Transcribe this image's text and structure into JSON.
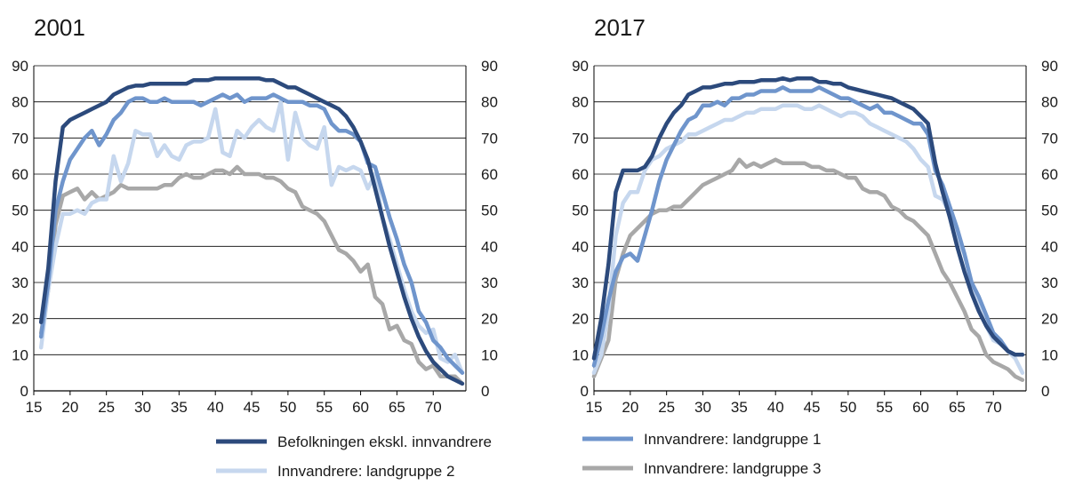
{
  "colors": {
    "Befolkningen ekskl. innvandrere": "#2c4a7c",
    "Innvandrere: landgruppe 1": "#6f95cc",
    "Innvandrere: landgruppe 2": "#c6d7ee",
    "Innvandrere: landgruppe 3": "#a8a8a8",
    "axis": "#000000",
    "grid": "#000000"
  },
  "legend": [
    "Befolkningen ekskl. innvandrere",
    "Innvandrere: landgruppe 1",
    "Innvandrere: landgruppe 2",
    "Innvandrere: landgruppe 3"
  ],
  "chart_data": [
    {
      "type": "line",
      "title": "2001",
      "xlabel": "",
      "ylabel": "",
      "xlim": [
        15,
        74.5
      ],
      "ylim": [
        0,
        90
      ],
      "xticks": [
        15,
        20,
        25,
        30,
        35,
        40,
        45,
        50,
        55,
        60,
        65,
        70
      ],
      "yticks": [
        0,
        10,
        20,
        30,
        40,
        50,
        60,
        70,
        80,
        90
      ],
      "grid": "horizontal",
      "secondary_y_axis": "mirrored",
      "x": [
        16,
        17,
        18,
        19,
        20,
        21,
        22,
        23,
        24,
        25,
        26,
        27,
        28,
        29,
        30,
        31,
        32,
        33,
        34,
        35,
        36,
        37,
        38,
        39,
        40,
        41,
        42,
        43,
        44,
        45,
        46,
        47,
        48,
        49,
        50,
        51,
        52,
        53,
        54,
        55,
        56,
        57,
        58,
        59,
        60,
        61,
        62,
        63,
        64,
        65,
        66,
        67,
        68,
        69,
        70,
        71,
        72,
        73,
        74
      ],
      "series": [
        {
          "name": "Befolkningen ekskl. innvandrere",
          "values": [
            19,
            34,
            58,
            73,
            75,
            76,
            77,
            78,
            79,
            80,
            82,
            83,
            84,
            84.5,
            84.5,
            85,
            85,
            85,
            85,
            85,
            85,
            86,
            86,
            86,
            86.5,
            86.5,
            86.5,
            86.5,
            86.5,
            86.5,
            86.5,
            86,
            86,
            85,
            84,
            84,
            83,
            82,
            81,
            80,
            79,
            78,
            76,
            73,
            69,
            64,
            56,
            48,
            40,
            33,
            26,
            20,
            15,
            11,
            8,
            6,
            4,
            3,
            2
          ]
        },
        {
          "name": "Innvandrere: landgruppe 1",
          "values": [
            15,
            30,
            50,
            58,
            64,
            67,
            70,
            72,
            68,
            71,
            75,
            77,
            80,
            81,
            81,
            80,
            80,
            81,
            80,
            80,
            80,
            80,
            79,
            80,
            81,
            82,
            81,
            82,
            80,
            81,
            81,
            81,
            82,
            81,
            80,
            80,
            80,
            79,
            79,
            78,
            74,
            72,
            72,
            71,
            69,
            63,
            62,
            55,
            48,
            42,
            35,
            30,
            22,
            19,
            14,
            12,
            9,
            7,
            5
          ]
        },
        {
          "name": "Innvandrere: landgruppe 2",
          "values": [
            12,
            28,
            40,
            49,
            49,
            50,
            49,
            52,
            53,
            53,
            65,
            58,
            63,
            72,
            71,
            71,
            65,
            68,
            65,
            64,
            68,
            69,
            69,
            70,
            78,
            66,
            65,
            72,
            70,
            73,
            75,
            73,
            72,
            80,
            64,
            77,
            70,
            68,
            67,
            73,
            57,
            62,
            61,
            62,
            61,
            56,
            60,
            48,
            42,
            35,
            28,
            22,
            18,
            16,
            17,
            9,
            8,
            10,
            5
          ]
        },
        {
          "name": "Innvandrere: landgruppe 3",
          "values": [
            16,
            28,
            46,
            54,
            55,
            56,
            53,
            55,
            53,
            54,
            55,
            57,
            56,
            56,
            56,
            56,
            56,
            57,
            57,
            59,
            60,
            59,
            59,
            60,
            61,
            61,
            60,
            62,
            60,
            60,
            60,
            59,
            59,
            58,
            56,
            55,
            51,
            50,
            49,
            47,
            43,
            39,
            38,
            36,
            33,
            35,
            26,
            24,
            17,
            18,
            14,
            13,
            8,
            6,
            7,
            4,
            4,
            4,
            2
          ]
        }
      ]
    },
    {
      "type": "line",
      "title": "2017",
      "xlabel": "",
      "ylabel": "",
      "xlim": [
        15,
        74.5
      ],
      "ylim": [
        0,
        90
      ],
      "xticks": [
        15,
        20,
        25,
        30,
        35,
        40,
        45,
        50,
        55,
        60,
        65,
        70
      ],
      "yticks": [
        0,
        10,
        20,
        30,
        40,
        50,
        60,
        70,
        80,
        90
      ],
      "grid": "horizontal",
      "secondary_y_axis": "mirrored",
      "x": [
        15,
        16,
        17,
        18,
        19,
        20,
        21,
        22,
        23,
        24,
        25,
        26,
        27,
        28,
        29,
        30,
        31,
        32,
        33,
        34,
        35,
        36,
        37,
        38,
        39,
        40,
        41,
        42,
        43,
        44,
        45,
        46,
        47,
        48,
        49,
        50,
        51,
        52,
        53,
        54,
        55,
        56,
        57,
        58,
        59,
        60,
        61,
        62,
        63,
        64,
        65,
        66,
        67,
        68,
        69,
        70,
        71,
        72,
        73,
        74
      ],
      "series": [
        {
          "name": "Befolkningen ekskl. innvandrere",
          "values": [
            9,
            20,
            35,
            55,
            61,
            61,
            61,
            62,
            65,
            70,
            74,
            77,
            79,
            82,
            83,
            84,
            84,
            84.5,
            85,
            85,
            85.5,
            85.5,
            85.5,
            86,
            86,
            86,
            86.5,
            86,
            86.5,
            86.5,
            86.5,
            85.5,
            85.5,
            85,
            85,
            84,
            83.5,
            83,
            82.5,
            82,
            81.5,
            81,
            80,
            79,
            78,
            76,
            74,
            63,
            55,
            48,
            40,
            33,
            27,
            22,
            18,
            15,
            13,
            11,
            10,
            10
          ]
        },
        {
          "name": "Innvandrere: landgruppe 1",
          "values": [
            7,
            15,
            25,
            33,
            37,
            38,
            36,
            43,
            50,
            58,
            64,
            68,
            72,
            75,
            76,
            79,
            79,
            80,
            79,
            81,
            81,
            82,
            82,
            83,
            83,
            83,
            84,
            83,
            83,
            83,
            83,
            84,
            83,
            82,
            81,
            81,
            80,
            79,
            78,
            79,
            77,
            77,
            76,
            75,
            74,
            74,
            71,
            61,
            57,
            51,
            45,
            38,
            30,
            26,
            21,
            16,
            14,
            11,
            10,
            10
          ]
        },
        {
          "name": "Innvandrere: landgruppe 2",
          "values": [
            5,
            10,
            22,
            43,
            52,
            55,
            55,
            61,
            64,
            65,
            67,
            68,
            69,
            71,
            71,
            72,
            73,
            74,
            75,
            75,
            76,
            77,
            77,
            78,
            78,
            78,
            79,
            79,
            79,
            78,
            78,
            79,
            78,
            77,
            76,
            77,
            77,
            76,
            74,
            73,
            72,
            71,
            70,
            69,
            67,
            64,
            62,
            54,
            53,
            49,
            43,
            38,
            30,
            23,
            18,
            14,
            13,
            11,
            9,
            5
          ]
        },
        {
          "name": "Innvandrere: landgruppe 3",
          "values": [
            4,
            9,
            14,
            31,
            38,
            43,
            45,
            47,
            49,
            50,
            50,
            51,
            51,
            53,
            55,
            57,
            58,
            59,
            60,
            61,
            64,
            62,
            63,
            62,
            63,
            64,
            63,
            63,
            63,
            63,
            62,
            62,
            61,
            61,
            60,
            59,
            59,
            56,
            55,
            55,
            54,
            51,
            50,
            48,
            47,
            45,
            43,
            38,
            33,
            30,
            26,
            22,
            17,
            15,
            10,
            8,
            7,
            6,
            4,
            3
          ]
        }
      ]
    }
  ]
}
